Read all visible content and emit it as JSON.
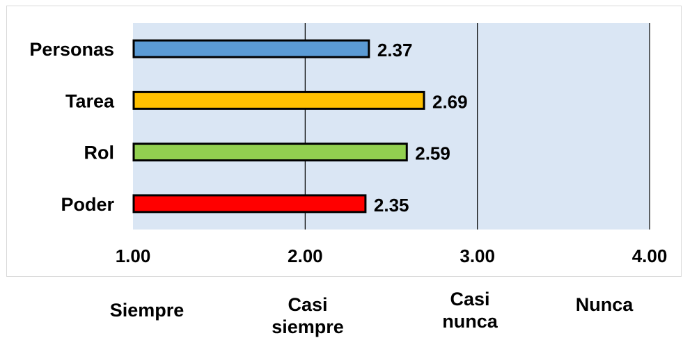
{
  "chart_data": {
    "type": "bar",
    "orientation": "horizontal",
    "categories": [
      "Personas",
      "Tarea",
      "Rol",
      "Poder"
    ],
    "values": [
      2.37,
      2.69,
      2.59,
      2.35
    ],
    "value_labels": [
      "2.37",
      "2.69",
      "2.59",
      "2.35"
    ],
    "bar_colors": [
      "#5b9bd5",
      "#ffc000",
      "#92d050",
      "#ff0000"
    ],
    "xlim": [
      1,
      4
    ],
    "x_ticks": [
      1,
      2,
      3,
      4
    ],
    "x_tick_labels": [
      "1.00",
      "2.00",
      "3.00",
      "4.00"
    ],
    "grid": "vertical",
    "plot_background": "#dae6f4",
    "scale_labels": [
      "Siempre",
      "Casi\nsiempre",
      "Casi\nnunca",
      "Nunca"
    ]
  }
}
